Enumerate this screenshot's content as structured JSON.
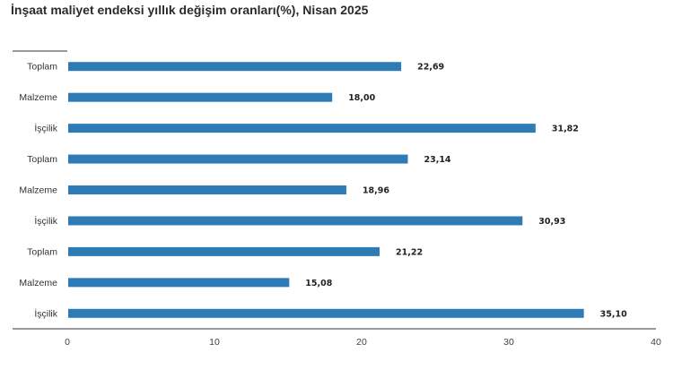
{
  "chart_data": {
    "type": "bar",
    "orientation": "horizontal",
    "title": "İnşaat maliyet endeksi yıllık değişim oranları(%), Nisan 2025",
    "categories": [
      "Toplam",
      "Malzeme",
      "İşçilik",
      "Toplam",
      "Malzeme",
      "İşçilik",
      "Toplam",
      "Malzeme",
      "İşçilik"
    ],
    "values": [
      22.69,
      18.0,
      31.82,
      23.14,
      18.96,
      30.93,
      21.22,
      15.08,
      35.1
    ],
    "value_labels": [
      "22,69",
      "18,00",
      "31,82",
      "23,14",
      "18,96",
      "30,93",
      "21,22",
      "15,08",
      "35,10"
    ],
    "xlim": [
      0,
      40
    ],
    "xticks": [
      0,
      10,
      20,
      30,
      40
    ],
    "xlabel": "",
    "ylabel": "",
    "grid": false,
    "bar_color": "#2f7bb6"
  }
}
